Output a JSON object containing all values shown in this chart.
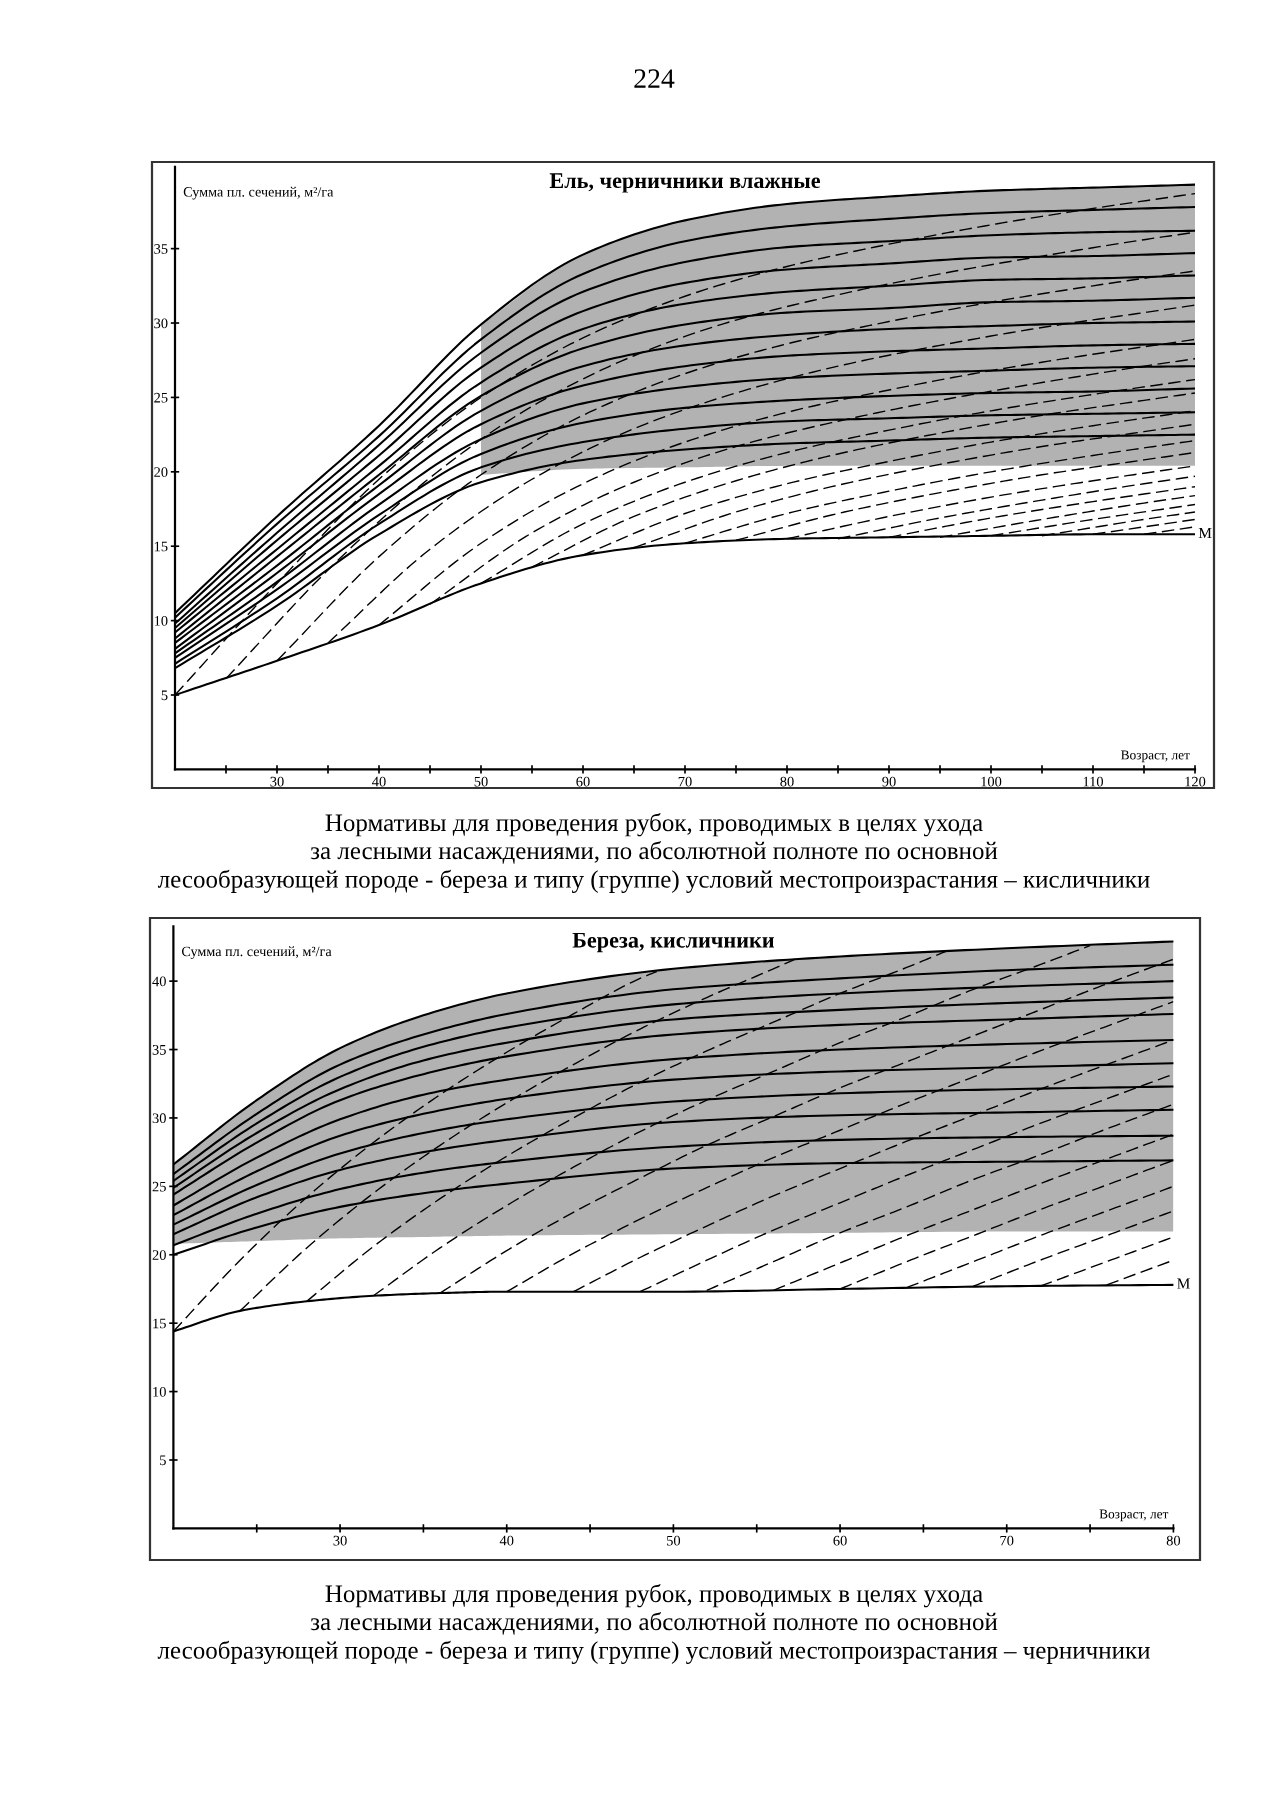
{
  "chart_data": [
    {
      "type": "line",
      "title": "Ель, черничники влажные",
      "xlabel": "Возраст, лет",
      "ylabel": "Сумма пл. сечений, м²/га",
      "xlim": [
        20,
        120
      ],
      "ylim": [
        0,
        40.5
      ],
      "xticks": [
        {
          "value": 25,
          "label": null
        },
        30,
        {
          "value": 35,
          "label": null
        },
        40,
        {
          "value": 45,
          "label": null
        },
        50,
        {
          "value": 55,
          "label": null
        },
        60,
        {
          "value": 65,
          "label": null
        },
        70,
        {
          "value": 75,
          "label": null
        },
        80,
        {
          "value": 85,
          "label": null
        },
        90,
        {
          "value": 95,
          "label": null
        },
        100,
        {
          "value": 105,
          "label": null
        },
        110,
        {
          "value": 115,
          "label": null
        },
        120
      ],
      "yticks": [
        5,
        10,
        15,
        20,
        25,
        30,
        35
      ],
      "annotations": [
        "224",
        {
          "text": "М",
          "x": 120,
          "y": 15.8
        }
      ],
      "series": [
        {
          "color": "#000000",
          "line_style": "solid",
          "x": [
            20,
            30,
            40,
            50,
            60,
            70,
            80,
            90,
            100,
            110,
            120
          ],
          "values": [
            10.5,
            17.0,
            23.1,
            29.9,
            34.6,
            36.9,
            38.0,
            38.5,
            38.9,
            39.1,
            39.3
          ],
          "lower": [
            null,
            null,
            null,
            19.8,
            20.2,
            20.3,
            20.4,
            20.4,
            20.4,
            20.4,
            20.4
          ],
          "upper": [
            null,
            null,
            null,
            29.9,
            34.6,
            36.9,
            38.0,
            38.5,
            38.9,
            39.1,
            39.3
          ]
        },
        {
          "color": "#000000",
          "line_style": "solid",
          "x": [
            20,
            30,
            40,
            50,
            60,
            70,
            80,
            90,
            100,
            110,
            120
          ],
          "values": [
            10.2,
            16.5,
            22.4,
            28.9,
            33.3,
            35.5,
            36.5,
            37.0,
            37.4,
            37.6,
            37.8
          ]
        },
        {
          "color": "#000000",
          "line_style": "solid",
          "x": [
            20,
            30,
            40,
            50,
            60,
            70,
            80,
            90,
            100,
            110,
            120
          ],
          "values": [
            9.8,
            15.9,
            21.8,
            28.0,
            32.1,
            34.1,
            35.1,
            35.5,
            35.9,
            36.1,
            36.2
          ]
        },
        {
          "color": "#000000",
          "line_style": "solid",
          "x": [
            20,
            30,
            40,
            50,
            60,
            70,
            80,
            90,
            100,
            110,
            120
          ],
          "values": [
            9.5,
            15.4,
            21.1,
            27.0,
            30.8,
            32.7,
            33.6,
            34.0,
            34.4,
            34.5,
            34.7
          ]
        },
        {
          "color": "#000000",
          "line_style": "solid",
          "x": [
            20,
            30,
            40,
            50,
            60,
            70,
            80,
            90,
            100,
            110,
            120
          ],
          "values": [
            9.2,
            14.8,
            20.4,
            26.0,
            29.6,
            31.3,
            32.1,
            32.5,
            32.9,
            33.0,
            33.2
          ]
        },
        {
          "color": "#000000",
          "line_style": "solid",
          "x": [
            20,
            30,
            40,
            50,
            60,
            70,
            80,
            90,
            100,
            110,
            120
          ],
          "values": [
            8.8,
            14.3,
            19.8,
            25.1,
            28.3,
            29.9,
            30.7,
            31.0,
            31.4,
            31.5,
            31.7
          ]
        },
        {
          "color": "#000000",
          "line_style": "solid",
          "x": [
            20,
            30,
            40,
            50,
            60,
            70,
            80,
            90,
            100,
            110,
            120
          ],
          "values": [
            8.5,
            13.7,
            19.1,
            24.1,
            27.1,
            28.5,
            29.2,
            29.6,
            29.8,
            30.0,
            30.1
          ]
        },
        {
          "color": "#000000",
          "line_style": "solid",
          "x": [
            20,
            30,
            40,
            50,
            60,
            70,
            80,
            90,
            100,
            110,
            120
          ],
          "values": [
            8.1,
            13.2,
            18.5,
            23.2,
            25.8,
            27.1,
            27.8,
            28.1,
            28.3,
            28.5,
            28.6
          ]
        },
        {
          "color": "#000000",
          "line_style": "solid",
          "x": [
            20,
            30,
            40,
            50,
            60,
            70,
            80,
            90,
            100,
            110,
            120
          ],
          "values": [
            7.8,
            12.6,
            17.8,
            22.2,
            24.6,
            25.7,
            26.3,
            26.6,
            26.8,
            27.0,
            27.1
          ]
        },
        {
          "color": "#000000",
          "line_style": "solid",
          "x": [
            20,
            30,
            40,
            50,
            60,
            70,
            80,
            90,
            100,
            110,
            120
          ],
          "values": [
            7.5,
            12.1,
            17.1,
            21.2,
            23.3,
            24.3,
            24.8,
            25.1,
            25.3,
            25.4,
            25.6
          ]
        },
        {
          "color": "#000000",
          "line_style": "solid",
          "x": [
            20,
            30,
            40,
            50,
            60,
            70,
            80,
            90,
            100,
            110,
            120
          ],
          "values": [
            7.1,
            11.5,
            16.5,
            20.3,
            22.0,
            22.9,
            23.4,
            23.6,
            23.8,
            23.9,
            24.0
          ]
        },
        {
          "color": "#000000",
          "line_style": "solid",
          "x": [
            20,
            30,
            40,
            50,
            60,
            70,
            80,
            90,
            100,
            110,
            120
          ],
          "values": [
            6.8,
            11.0,
            15.8,
            19.3,
            20.8,
            21.5,
            21.9,
            22.1,
            22.3,
            22.4,
            22.5
          ]
        },
        {
          "color": "#000000",
          "line_style": "solid",
          "x": [
            20,
            30,
            40,
            50,
            60,
            70,
            80,
            90,
            100,
            110,
            120
          ],
          "values": [
            5.0,
            7.3,
            9.7,
            12.5,
            14.4,
            15.2,
            15.5,
            15.6,
            15.7,
            15.8,
            15.8
          ]
        },
        {
          "color": "#000000",
          "line_style": "dashed",
          "x": [
            20,
            30,
            40,
            50,
            60,
            70,
            80,
            90,
            100,
            110,
            120
          ],
          "values": [
            5.0,
            12.5,
            19.5,
            25.0,
            29.0,
            31.8,
            33.8,
            35.3,
            36.6,
            37.7,
            38.7
          ]
        },
        {
          "color": "#000000",
          "line_style": "dashed",
          "x": [
            25,
            35,
            45,
            55,
            65,
            75,
            85,
            95,
            105,
            115,
            120
          ],
          "values": [
            6.1,
            13.4,
            19.6,
            24.4,
            27.8,
            30.2,
            31.9,
            33.3,
            34.5,
            35.6,
            36.1
          ]
        },
        {
          "color": "#000000",
          "line_style": "dashed",
          "x": [
            30,
            40,
            50,
            60,
            70,
            80,
            90,
            100,
            110,
            120
          ],
          "values": [
            7.3,
            14.3,
            19.8,
            23.8,
            26.6,
            28.6,
            30.1,
            31.4,
            32.5,
            33.5
          ]
        },
        {
          "color": "#000000",
          "line_style": "dashed",
          "x": [
            35,
            45,
            55,
            65,
            75,
            85,
            95,
            105,
            115,
            120
          ],
          "values": [
            8.5,
            14.8,
            19.5,
            22.9,
            25.3,
            27.1,
            28.5,
            29.7,
            30.7,
            31.2
          ]
        },
        {
          "color": "#000000",
          "line_style": "dashed",
          "x": [
            40,
            50,
            60,
            70,
            80,
            90,
            100,
            110,
            120
          ],
          "values": [
            9.7,
            15.2,
            19.2,
            22.0,
            24.0,
            25.5,
            26.8,
            27.9,
            28.9
          ]
        },
        {
          "color": "#000000",
          "line_style": "dashed",
          "x": [
            45,
            55,
            65,
            75,
            85,
            95,
            105,
            115,
            120
          ],
          "values": [
            11.1,
            15.9,
            19.3,
            21.7,
            23.4,
            24.8,
            26.0,
            27.1,
            27.6
          ]
        },
        {
          "color": "#000000",
          "line_style": "dashed",
          "x": [
            50,
            60,
            70,
            80,
            90,
            100,
            110,
            120
          ],
          "values": [
            12.5,
            16.5,
            19.3,
            21.3,
            22.8,
            24.1,
            25.2,
            26.2
          ]
        },
        {
          "color": "#000000",
          "line_style": "dashed",
          "x": [
            55,
            65,
            75,
            85,
            95,
            105,
            115,
            120
          ],
          "values": [
            13.6,
            17.0,
            19.4,
            21.2,
            22.6,
            23.8,
            24.8,
            25.3
          ]
        },
        {
          "color": "#000000",
          "line_style": "dashed",
          "x": [
            60,
            70,
            80,
            90,
            100,
            110,
            120
          ],
          "values": [
            14.4,
            17.2,
            19.2,
            20.7,
            22.0,
            23.1,
            24.1
          ]
        },
        {
          "color": "#000000",
          "line_style": "dashed",
          "x": [
            65,
            75,
            85,
            95,
            105,
            115,
            120
          ],
          "values": [
            14.9,
            17.3,
            19.1,
            20.5,
            21.7,
            22.7,
            23.2
          ]
        },
        {
          "color": "#000000",
          "line_style": "dashed",
          "x": [
            70,
            80,
            90,
            100,
            110,
            120
          ],
          "values": [
            15.2,
            17.2,
            18.7,
            20.0,
            21.1,
            22.1
          ]
        },
        {
          "color": "#000000",
          "line_style": "dashed",
          "x": [
            75,
            85,
            95,
            105,
            115,
            120
          ],
          "values": [
            15.4,
            17.2,
            18.6,
            19.8,
            20.8,
            21.3
          ]
        },
        {
          "color": "#000000",
          "line_style": "dashed",
          "x": [
            80,
            90,
            100,
            110,
            120
          ],
          "values": [
            15.5,
            17.0,
            18.3,
            19.4,
            20.4
          ]
        },
        {
          "color": "#000000",
          "line_style": "dashed",
          "x": [
            85,
            95,
            105,
            115,
            120
          ],
          "values": [
            15.5,
            16.9,
            18.1,
            19.2,
            19.7
          ]
        },
        {
          "color": "#000000",
          "line_style": "dashed",
          "x": [
            90,
            100,
            110,
            120
          ],
          "values": [
            15.6,
            16.9,
            18.0,
            19.0
          ]
        },
        {
          "color": "#000000",
          "line_style": "dashed",
          "x": [
            95,
            105,
            115,
            120
          ],
          "values": [
            15.6,
            16.8,
            17.9,
            18.4
          ]
        },
        {
          "color": "#000000",
          "line_style": "dashed",
          "x": [
            100,
            110,
            120
          ],
          "values": [
            15.7,
            16.8,
            17.8
          ]
        },
        {
          "color": "#000000",
          "line_style": "dashed",
          "x": [
            105,
            115,
            120
          ],
          "values": [
            15.7,
            16.8,
            17.3
          ]
        },
        {
          "color": "#000000",
          "line_style": "dashed",
          "x": [
            110,
            120
          ],
          "values": [
            15.8,
            16.8
          ]
        },
        {
          "color": "#000000",
          "line_style": "dashed",
          "x": [
            115,
            120
          ],
          "values": [
            15.8,
            16.3
          ]
        }
      ]
    },
    {
      "type": "line",
      "title": "Береза, кисличники",
      "xlabel": "Возраст, лет",
      "ylabel": "Сумма пл. сечений, м²/га",
      "xlim": [
        20,
        80
      ],
      "ylim": [
        0,
        44
      ],
      "xticks": [
        {
          "value": 25,
          "label": null
        },
        30,
        {
          "value": 35,
          "label": null
        },
        40,
        {
          "value": 45,
          "label": null
        },
        50,
        {
          "value": 55,
          "label": null
        },
        60,
        {
          "value": 65,
          "label": null
        },
        70,
        {
          "value": 75,
          "label": null
        },
        80
      ],
      "yticks": [
        5,
        10,
        15,
        20,
        25,
        30,
        35,
        40
      ],
      "annotations": [
        "Нормативы для проведения рубок, проводимых в целях ухода\nза лесными насаждениями, по абсолютной полноте по основной\nлесообразующей породе - береза и типу (группе) условий местопроизрастания – кисличники",
        "Нормативы для проведения рубок, проводимых в целях ухода\nза лесными насаждениями, по абсолютной полноте по основной\nлесообразующей породе - береза и типу (группе) условий местопроизрастания – черничники",
        {
          "text": "М",
          "x": 80,
          "y": 17.8
        }
      ],
      "series": [
        {
          "color": "#000000",
          "line_style": "solid",
          "x": [
            20,
            25,
            30,
            35,
            40,
            50,
            60,
            70,
            80
          ],
          "values": [
            26.6,
            31.3,
            35.1,
            37.5,
            39.1,
            40.9,
            41.8,
            42.4,
            42.9
          ],
          "lower": [
            20.8,
            21.0,
            21.2,
            21.3,
            21.4,
            21.5,
            21.6,
            21.7,
            21.7
          ],
          "upper": [
            26.6,
            31.3,
            35.1,
            37.5,
            39.1,
            40.9,
            41.8,
            42.4,
            42.9
          ]
        },
        {
          "color": "#000000",
          "line_style": "solid",
          "x": [
            20,
            25,
            30,
            35,
            40,
            50,
            60,
            70,
            80
          ],
          "values": [
            25.9,
            30.3,
            33.9,
            36.1,
            37.6,
            39.4,
            40.2,
            40.8,
            41.2
          ]
        },
        {
          "color": "#000000",
          "line_style": "solid",
          "x": [
            20,
            25,
            30,
            35,
            40,
            50,
            60,
            70,
            80
          ],
          "values": [
            25.4,
            29.6,
            33.0,
            35.2,
            36.6,
            38.3,
            39.1,
            39.6,
            40.0
          ]
        },
        {
          "color": "#000000",
          "line_style": "solid",
          "x": [
            20,
            25,
            30,
            35,
            40,
            50,
            60,
            70,
            80
          ],
          "values": [
            24.9,
            28.9,
            32.1,
            34.2,
            35.5,
            37.2,
            37.9,
            38.4,
            38.8
          ]
        },
        {
          "color": "#000000",
          "line_style": "solid",
          "x": [
            20,
            25,
            30,
            35,
            40,
            50,
            60,
            70,
            80
          ],
          "values": [
            24.4,
            28.2,
            31.3,
            33.2,
            34.5,
            36.1,
            36.8,
            37.2,
            37.6
          ]
        },
        {
          "color": "#000000",
          "line_style": "solid",
          "x": [
            20,
            25,
            30,
            35,
            40,
            50,
            60,
            70,
            80
          ],
          "values": [
            23.6,
            27.1,
            29.9,
            31.7,
            32.8,
            34.3,
            35.0,
            35.4,
            35.7
          ]
        },
        {
          "color": "#000000",
          "line_style": "solid",
          "x": [
            20,
            25,
            30,
            35,
            40,
            50,
            60,
            70,
            80
          ],
          "values": [
            22.9,
            26.1,
            28.7,
            30.3,
            31.4,
            32.8,
            33.4,
            33.7,
            34.0
          ]
        },
        {
          "color": "#000000",
          "line_style": "solid",
          "x": [
            20,
            25,
            30,
            35,
            40,
            50,
            60,
            70,
            80
          ],
          "values": [
            22.2,
            25.1,
            27.4,
            28.9,
            29.9,
            31.2,
            31.8,
            32.1,
            32.3
          ]
        },
        {
          "color": "#000000",
          "line_style": "solid",
          "x": [
            20,
            25,
            30,
            35,
            40,
            50,
            60,
            70,
            80
          ],
          "values": [
            21.5,
            24.2,
            26.2,
            27.5,
            28.4,
            29.7,
            30.2,
            30.4,
            30.6
          ]
        },
        {
          "color": "#000000",
          "line_style": "solid",
          "x": [
            20,
            25,
            30,
            35,
            40,
            50,
            60,
            70,
            80
          ],
          "values": [
            20.7,
            23.0,
            24.8,
            26.0,
            26.8,
            27.9,
            28.4,
            28.6,
            28.7
          ]
        },
        {
          "color": "#000000",
          "line_style": "solid",
          "x": [
            20,
            25,
            30,
            35,
            40,
            50,
            60,
            70,
            80
          ],
          "values": [
            20.0,
            22.0,
            23.5,
            24.5,
            25.2,
            26.3,
            26.7,
            26.8,
            26.9
          ]
        },
        {
          "color": "#000000",
          "line_style": "solid",
          "x": [
            20,
            24,
            28,
            32,
            36,
            40,
            50,
            60,
            70,
            80
          ],
          "values": [
            14.4,
            15.9,
            16.6,
            17.0,
            17.2,
            17.3,
            17.3,
            17.5,
            17.7,
            17.8
          ]
        },
        {
          "color": "#000000",
          "line_style": "dashed",
          "x": [
            20,
            24,
            28,
            32,
            36,
            40,
            44,
            48,
            49
          ],
          "values": [
            14.4,
            19.6,
            24.2,
            28.2,
            31.7,
            34.8,
            37.6,
            40.2,
            40.7
          ]
        },
        {
          "color": "#000000",
          "line_style": "dashed",
          "x": [
            24,
            28,
            32,
            36,
            40,
            44,
            48,
            52,
            56,
            57.3
          ],
          "values": [
            15.9,
            20.5,
            24.5,
            28.0,
            31.1,
            33.9,
            36.5,
            38.8,
            40.9,
            41.6
          ]
        },
        {
          "color": "#000000",
          "line_style": "dashed",
          "x": [
            28,
            32,
            36,
            40,
            44,
            48,
            52,
            56,
            60,
            64,
            66.4
          ],
          "values": [
            16.6,
            20.6,
            24.1,
            27.2,
            30.0,
            32.6,
            34.9,
            37.0,
            39.1,
            41.0,
            42.2
          ]
        },
        {
          "color": "#000000",
          "line_style": "dashed",
          "x": [
            32,
            36,
            40,
            44,
            48,
            52,
            56,
            60,
            64,
            68,
            72,
            75
          ],
          "values": [
            17.0,
            20.5,
            23.6,
            26.4,
            29.0,
            31.3,
            33.4,
            35.5,
            37.4,
            39.4,
            41.2,
            42.6
          ]
        },
        {
          "color": "#000000",
          "line_style": "dashed",
          "x": [
            36,
            40,
            44,
            48,
            52,
            56,
            60,
            64,
            68,
            72,
            76,
            80
          ],
          "values": [
            17.2,
            20.3,
            23.1,
            25.6,
            28.0,
            30.1,
            32.2,
            34.1,
            36.0,
            37.9,
            39.8,
            41.6
          ]
        },
        {
          "color": "#000000",
          "line_style": "dashed",
          "x": [
            40,
            44,
            48,
            52,
            56,
            60,
            64,
            68,
            72,
            76,
            80
          ],
          "values": [
            17.3,
            20.1,
            22.6,
            24.9,
            27.1,
            29.1,
            31.1,
            33.0,
            34.9,
            36.7,
            38.5
          ]
        },
        {
          "color": "#000000",
          "line_style": "dashed",
          "x": [
            44,
            48,
            52,
            56,
            60,
            64,
            68,
            72,
            76,
            80
          ],
          "values": [
            17.3,
            19.8,
            22.1,
            24.3,
            26.3,
            28.3,
            30.2,
            32.1,
            33.9,
            35.7
          ]
        },
        {
          "color": "#000000",
          "line_style": "dashed",
          "x": [
            48,
            52,
            56,
            60,
            64,
            68,
            72,
            76,
            80
          ],
          "values": [
            17.3,
            19.6,
            21.8,
            23.8,
            25.8,
            27.7,
            29.6,
            31.4,
            33.2
          ]
        },
        {
          "color": "#000000",
          "line_style": "dashed",
          "x": [
            52,
            56,
            60,
            64,
            68,
            72,
            76,
            80
          ],
          "values": [
            17.4,
            19.5,
            21.6,
            23.5,
            25.5,
            27.3,
            29.2,
            31.0
          ]
        },
        {
          "color": "#000000",
          "line_style": "dashed",
          "x": [
            56,
            60,
            64,
            68,
            72,
            76,
            80
          ],
          "values": [
            17.4,
            19.4,
            21.4,
            23.3,
            25.2,
            27.0,
            28.8
          ]
        },
        {
          "color": "#000000",
          "line_style": "dashed",
          "x": [
            60,
            64,
            68,
            72,
            76,
            80
          ],
          "values": [
            17.5,
            19.5,
            21.4,
            23.3,
            25.1,
            26.9
          ]
        },
        {
          "color": "#000000",
          "line_style": "dashed",
          "x": [
            64,
            68,
            72,
            76,
            80
          ],
          "values": [
            17.6,
            19.5,
            21.4,
            23.2,
            25.0
          ]
        },
        {
          "color": "#000000",
          "line_style": "dashed",
          "x": [
            68,
            72,
            76,
            80
          ],
          "values": [
            17.7,
            19.6,
            21.4,
            23.2
          ]
        },
        {
          "color": "#000000",
          "line_style": "dashed",
          "x": [
            72,
            76,
            80
          ],
          "values": [
            17.7,
            19.5,
            21.3
          ]
        },
        {
          "color": "#000000",
          "line_style": "dashed",
          "x": [
            76,
            80
          ],
          "values": [
            17.8,
            19.6
          ]
        }
      ]
    }
  ]
}
